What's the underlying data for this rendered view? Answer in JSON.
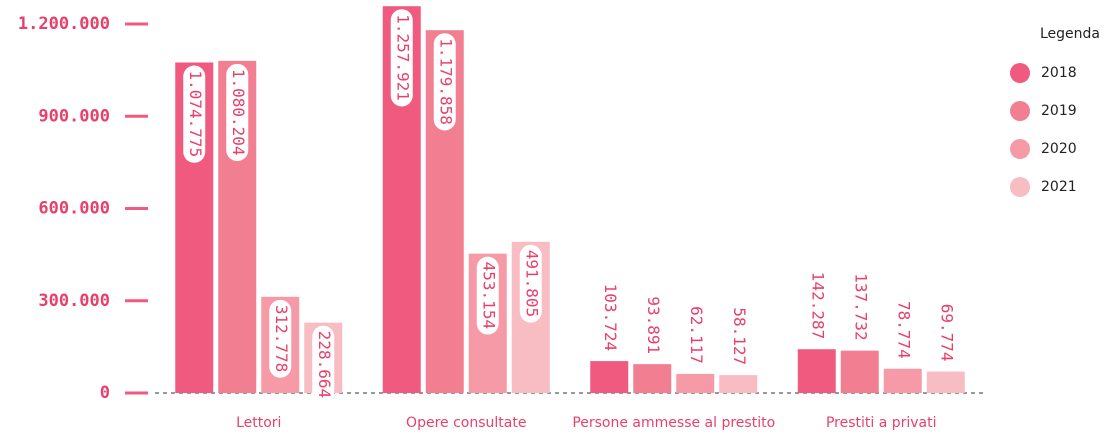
{
  "chart_data": {
    "type": "bar",
    "categories": [
      "Lettori",
      "Opere consultate",
      "Persone ammesse al prestito",
      "Prestiti a privati"
    ],
    "legend_title": "Legenda",
    "series": [
      {
        "name": "2018",
        "color": "#f05a7e",
        "values": [
          1074775,
          1257921,
          103724,
          142287
        ],
        "value_labels": [
          "1.074.775",
          "1.257.921",
          "103.724",
          "142.287"
        ]
      },
      {
        "name": "2019",
        "color": "#f27f91",
        "values": [
          1080204,
          1179858,
          93891,
          137732
        ],
        "value_labels": [
          "1.080.204",
          "1.179.858",
          "93.891",
          "137.732"
        ]
      },
      {
        "name": "2020",
        "color": "#f59aa6",
        "values": [
          312778,
          453154,
          62117,
          78774
        ],
        "value_labels": [
          "312.778",
          "453.154",
          "62.117",
          "78.774"
        ]
      },
      {
        "name": "2021",
        "color": "#f8bcc3",
        "values": [
          228664,
          491805,
          58127,
          69774
        ],
        "value_labels": [
          "228.664",
          "491.805",
          "58.127",
          "69.774"
        ]
      }
    ],
    "ylim": [
      0,
      1200000
    ],
    "yticks": [
      0,
      {
        "value": 300000,
        "label": "300.000"
      },
      {
        "value": 600000,
        "label": "600.000"
      },
      {
        "value": 900000,
        "label": "900.000"
      },
      {
        "value": 1200000,
        "label": "1.200.000"
      }
    ],
    "legend": "top-right"
  }
}
